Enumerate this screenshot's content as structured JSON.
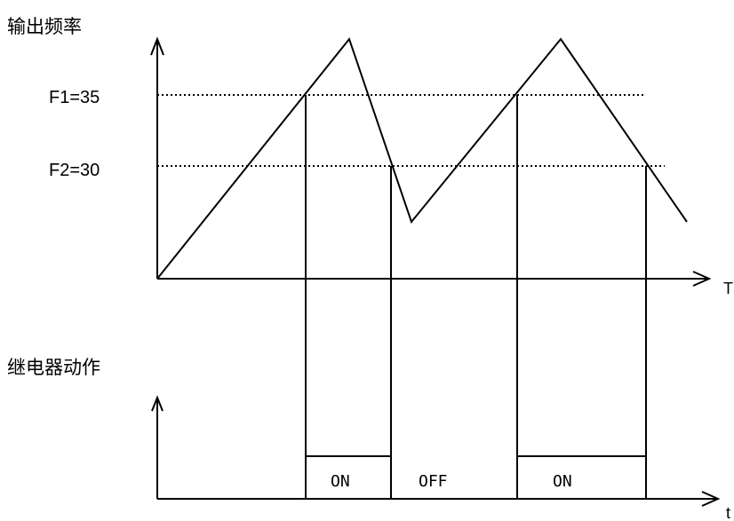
{
  "freq_chart": {
    "ylabel": "输出频率",
    "xlabel": "T",
    "levels": [
      {
        "label": "F1=35",
        "value": 35
      },
      {
        "label": "F2=30",
        "value": 30
      }
    ]
  },
  "relay_chart": {
    "ylabel": "继电器动作",
    "xlabel": "t",
    "states": [
      "ON",
      "OFF",
      "ON"
    ]
  }
}
